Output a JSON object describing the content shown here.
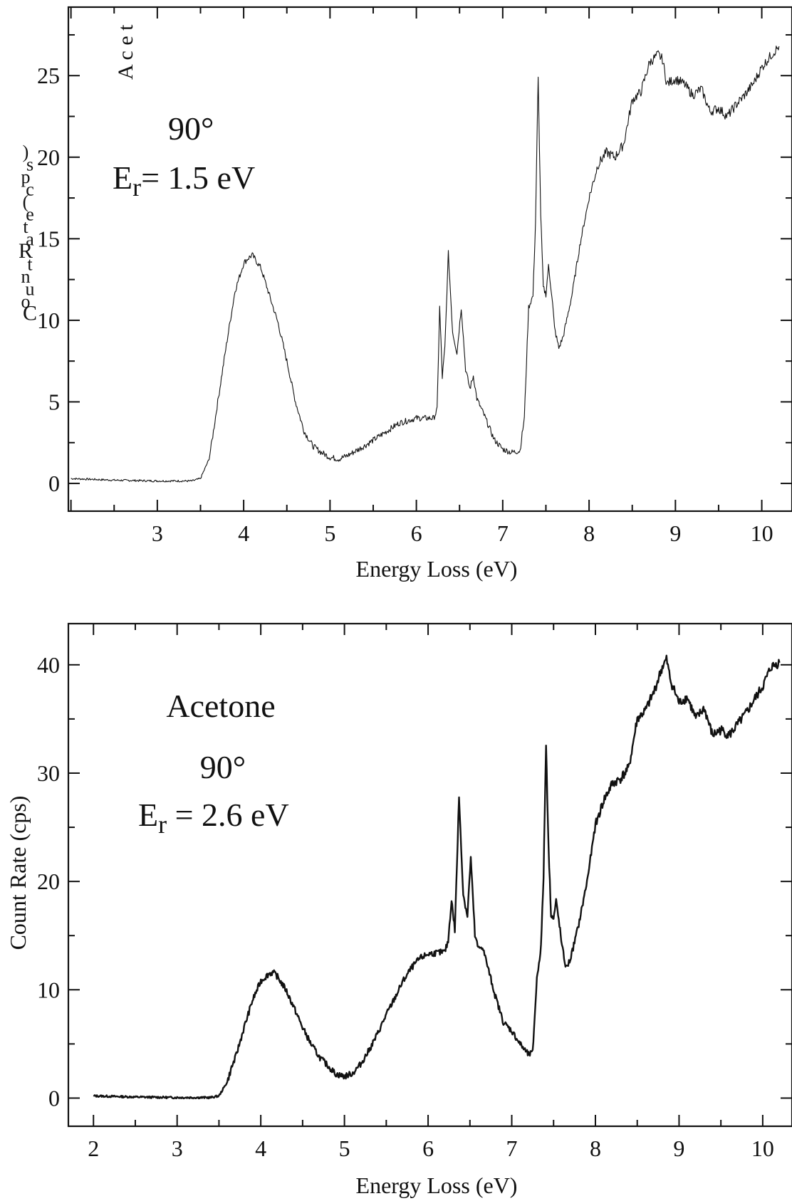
{
  "chart_data": [
    {
      "type": "line",
      "xlabel": "Energy Loss (eV)",
      "ylabel": "Count Rate (cps)",
      "garbled_ylabel_chars": [
        ")",
        "s",
        "p",
        "c",
        "(",
        "e",
        "t",
        "a",
        "R",
        "t",
        "n",
        "u",
        "o",
        "C"
      ],
      "clipped_title": "A c e t",
      "annotations": [
        "90°",
        "Er = 1.5 eV"
      ],
      "annotation_parts": {
        "angle": "90°",
        "energy_prefix": "E",
        "energy_sub": "r",
        "energy_rest": "= 1.5 eV"
      },
      "xlim": [
        1.97,
        10.35
      ],
      "ylim": [
        -1.7,
        29.2
      ],
      "xticks": [
        "3",
        "4",
        "5",
        "6",
        "7",
        "8",
        "9",
        "10"
      ],
      "yticks": [
        "0",
        "5",
        "10",
        "15",
        "20",
        "25"
      ],
      "line_color": "#111111",
      "line_width": 1.1,
      "grid": false,
      "x": [
        2.0,
        2.5,
        3.0,
        3.4,
        3.5,
        3.6,
        3.65,
        3.7,
        3.8,
        3.9,
        4.0,
        4.05,
        4.1,
        4.2,
        4.3,
        4.4,
        4.5,
        4.6,
        4.7,
        4.8,
        4.9,
        5.0,
        5.1,
        5.2,
        5.4,
        5.6,
        5.8,
        6.0,
        6.2,
        6.24,
        6.27,
        6.3,
        6.33,
        6.37,
        6.42,
        6.47,
        6.52,
        6.57,
        6.62,
        6.66,
        6.7,
        6.8,
        6.9,
        7.0,
        7.1,
        7.2,
        7.25,
        7.3,
        7.35,
        7.38,
        7.41,
        7.44,
        7.47,
        7.5,
        7.53,
        7.57,
        7.6,
        7.65,
        7.7,
        7.8,
        7.9,
        8.0,
        8.1,
        8.2,
        8.3,
        8.4,
        8.5,
        8.6,
        8.7,
        8.8,
        8.85,
        8.9,
        9.0,
        9.1,
        9.2,
        9.3,
        9.4,
        9.5,
        9.6,
        9.7,
        9.8,
        9.9,
        10.0,
        10.1,
        10.2
      ],
      "y": [
        0.3,
        0.2,
        0.15,
        0.15,
        0.3,
        1.5,
        3.2,
        5.0,
        8.5,
        11.8,
        13.5,
        13.8,
        14.0,
        13.2,
        11.5,
        9.8,
        7.5,
        5.0,
        3.2,
        2.3,
        1.9,
        1.6,
        1.5,
        1.7,
        2.3,
        3.0,
        3.7,
        4.0,
        4.0,
        4.5,
        10.8,
        6.5,
        8.3,
        14.1,
        9.3,
        8.0,
        10.8,
        7.0,
        5.8,
        6.6,
        5.2,
        4.0,
        2.7,
        2.1,
        1.9,
        2.0,
        4.0,
        10.8,
        11.5,
        16.0,
        24.8,
        16.5,
        12.0,
        11.6,
        13.3,
        11.5,
        9.5,
        8.3,
        9.0,
        11.5,
        14.8,
        17.5,
        19.5,
        20.3,
        20.0,
        20.8,
        23.5,
        24.0,
        25.8,
        26.3,
        26.0,
        24.5,
        24.8,
        24.5,
        23.8,
        24.2,
        22.8,
        23.0,
        22.5,
        23.2,
        23.8,
        24.5,
        25.5,
        26.2,
        26.8
      ]
    },
    {
      "type": "line",
      "xlabel": "Energy Loss (eV)",
      "ylabel": "Count Rate (cps)",
      "annotations": [
        "Acetone",
        "90°",
        "Er = 2.6 eV"
      ],
      "annotation_parts": {
        "title": "Acetone",
        "angle": "90°",
        "energy_prefix": "E",
        "energy_sub": "r",
        "energy_rest": " = 2.6 eV"
      },
      "xlim": [
        1.7,
        10.35
      ],
      "ylim": [
        -2.6,
        43.8
      ],
      "xticks": [
        "2",
        "3",
        "4",
        "5",
        "6",
        "7",
        "8",
        "9",
        "10"
      ],
      "yticks": [
        "0",
        "10",
        "20",
        "30",
        "40"
      ],
      "line_color": "#111111",
      "line_width": 2.4,
      "grid": false,
      "x": [
        2.0,
        2.5,
        3.0,
        3.4,
        3.5,
        3.6,
        3.65,
        3.7,
        3.8,
        3.9,
        4.0,
        4.1,
        4.15,
        4.2,
        4.3,
        4.4,
        4.5,
        4.6,
        4.7,
        4.8,
        4.9,
        5.0,
        5.1,
        5.2,
        5.3,
        5.4,
        5.5,
        5.6,
        5.7,
        5.8,
        5.9,
        6.0,
        6.1,
        6.2,
        6.24,
        6.28,
        6.32,
        6.37,
        6.42,
        6.47,
        6.51,
        6.56,
        6.6,
        6.65,
        6.7,
        6.8,
        6.9,
        7.0,
        7.1,
        7.2,
        7.25,
        7.3,
        7.35,
        7.38,
        7.41,
        7.44,
        7.47,
        7.5,
        7.53,
        7.57,
        7.6,
        7.65,
        7.7,
        7.8,
        7.9,
        8.0,
        8.1,
        8.2,
        8.3,
        8.4,
        8.5,
        8.6,
        8.7,
        8.8,
        8.85,
        8.9,
        9.0,
        9.1,
        9.2,
        9.3,
        9.4,
        9.5,
        9.6,
        9.7,
        9.8,
        9.9,
        10.0,
        10.1,
        10.2
      ],
      "y": [
        0.2,
        0.1,
        0.05,
        0.05,
        0.2,
        1.5,
        2.8,
        3.8,
        6.5,
        9.0,
        10.8,
        11.5,
        11.6,
        11.2,
        10.0,
        8.3,
        6.5,
        5.0,
        3.8,
        3.0,
        2.2,
        2.0,
        2.3,
        3.2,
        4.5,
        6.0,
        7.7,
        9.2,
        10.8,
        12.0,
        12.9,
        13.3,
        13.4,
        13.5,
        14.5,
        18.3,
        15.5,
        27.8,
        18.8,
        16.8,
        22.2,
        15.0,
        13.8,
        14.0,
        12.5,
        9.5,
        7.0,
        6.2,
        5.0,
        4.0,
        4.2,
        11.0,
        14.0,
        20.5,
        32.8,
        23.0,
        17.0,
        16.5,
        18.2,
        16.0,
        14.0,
        12.0,
        12.8,
        16.0,
        20.0,
        25.2,
        27.5,
        29.0,
        29.5,
        30.5,
        35.0,
        35.8,
        37.5,
        39.8,
        40.5,
        38.5,
        36.5,
        37.0,
        35.0,
        36.0,
        33.5,
        34.0,
        33.5,
        34.5,
        35.5,
        36.8,
        38.0,
        39.8,
        40.2
      ]
    }
  ]
}
